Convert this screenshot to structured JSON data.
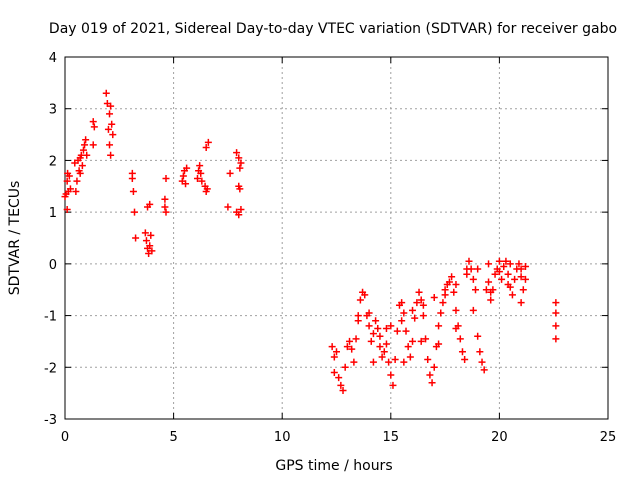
{
  "chart_data": {
    "type": "scatter",
    "title": "Day 019 of 2021, Sidereal Day-to-day VTEC variation (SDTVAR) for receiver gabo",
    "xlabel": "GPS time / hours",
    "ylabel": "SDTVAR / TECUs",
    "xlim": [
      0,
      25
    ],
    "ylim": [
      -3,
      4
    ],
    "xticks": [
      "0",
      "5",
      "10",
      "15",
      "20",
      "25"
    ],
    "yticks": [
      "-3",
      "-2",
      "-1",
      "0",
      "1",
      "2",
      "3",
      "4"
    ],
    "grid": true,
    "marker": "+",
    "color": "#ff0000",
    "series": [
      {
        "name": "SDTVAR",
        "points": [
          [
            0.0,
            1.3
          ],
          [
            0.05,
            1.35
          ],
          [
            0.1,
            1.6
          ],
          [
            0.1,
            1.05
          ],
          [
            0.12,
            1.75
          ],
          [
            0.15,
            1.4
          ],
          [
            0.2,
            1.7
          ],
          [
            0.25,
            1.45
          ],
          [
            0.45,
            1.95
          ],
          [
            0.5,
            1.4
          ],
          [
            0.55,
            1.6
          ],
          [
            0.6,
            2.0
          ],
          [
            0.65,
            1.8
          ],
          [
            0.7,
            2.05
          ],
          [
            0.7,
            1.75
          ],
          [
            0.75,
            2.1
          ],
          [
            0.8,
            1.9
          ],
          [
            0.85,
            2.2
          ],
          [
            0.9,
            2.3
          ],
          [
            0.95,
            2.4
          ],
          [
            1.0,
            2.1
          ],
          [
            1.3,
            2.3
          ],
          [
            1.3,
            2.75
          ],
          [
            1.35,
            2.65
          ],
          [
            1.9,
            3.3
          ],
          [
            1.95,
            3.1
          ],
          [
            2.0,
            2.6
          ],
          [
            2.05,
            2.9
          ],
          [
            2.05,
            2.3
          ],
          [
            2.1,
            3.05
          ],
          [
            2.1,
            2.1
          ],
          [
            2.15,
            2.7
          ],
          [
            2.2,
            2.5
          ],
          [
            3.1,
            1.75
          ],
          [
            3.1,
            1.65
          ],
          [
            3.15,
            1.4
          ],
          [
            3.2,
            1.0
          ],
          [
            3.25,
            0.5
          ],
          [
            3.7,
            0.6
          ],
          [
            3.75,
            0.45
          ],
          [
            3.8,
            0.3
          ],
          [
            3.85,
            0.2
          ],
          [
            3.9,
            0.35
          ],
          [
            3.95,
            0.55
          ],
          [
            4.0,
            0.25
          ],
          [
            3.8,
            1.1
          ],
          [
            3.9,
            1.15
          ],
          [
            4.6,
            1.25
          ],
          [
            4.6,
            1.1
          ],
          [
            4.65,
            1.0
          ],
          [
            4.65,
            1.65
          ],
          [
            5.4,
            1.6
          ],
          [
            5.45,
            1.7
          ],
          [
            5.5,
            1.8
          ],
          [
            5.55,
            1.55
          ],
          [
            5.6,
            1.85
          ],
          [
            6.1,
            1.65
          ],
          [
            6.15,
            1.8
          ],
          [
            6.2,
            1.9
          ],
          [
            6.25,
            1.75
          ],
          [
            6.3,
            1.6
          ],
          [
            6.45,
            1.5
          ],
          [
            6.5,
            1.4
          ],
          [
            6.55,
            1.45
          ],
          [
            6.5,
            2.25
          ],
          [
            6.6,
            2.35
          ],
          [
            7.5,
            1.1
          ],
          [
            7.6,
            1.75
          ],
          [
            7.9,
            2.15
          ],
          [
            8.0,
            2.05
          ],
          [
            8.05,
            1.85
          ],
          [
            8.1,
            1.95
          ],
          [
            8.0,
            1.5
          ],
          [
            8.05,
            1.45
          ],
          [
            7.9,
            1.0
          ],
          [
            8.0,
            0.95
          ],
          [
            8.1,
            1.05
          ],
          [
            12.3,
            -1.6
          ],
          [
            12.4,
            -1.8
          ],
          [
            12.4,
            -2.1
          ],
          [
            12.5,
            -1.7
          ],
          [
            12.6,
            -2.2
          ],
          [
            12.7,
            -2.35
          ],
          [
            12.8,
            -2.45
          ],
          [
            12.9,
            -2.0
          ],
          [
            13.0,
            -1.6
          ],
          [
            13.1,
            -1.5
          ],
          [
            13.2,
            -1.65
          ],
          [
            13.3,
            -1.9
          ],
          [
            13.4,
            -1.45
          ],
          [
            13.5,
            -1.1
          ],
          [
            13.6,
            -0.7
          ],
          [
            13.7,
            -0.55
          ],
          [
            13.8,
            -0.6
          ],
          [
            13.9,
            -1.0
          ],
          [
            14.0,
            -1.2
          ],
          [
            14.1,
            -1.5
          ],
          [
            14.2,
            -1.35
          ],
          [
            14.3,
            -1.1
          ],
          [
            14.4,
            -1.25
          ],
          [
            14.5,
            -1.6
          ],
          [
            14.6,
            -1.8
          ],
          [
            14.7,
            -1.7
          ],
          [
            14.8,
            -1.55
          ],
          [
            14.9,
            -1.9
          ],
          [
            15.0,
            -2.15
          ],
          [
            15.1,
            -2.35
          ],
          [
            15.2,
            -1.85
          ],
          [
            15.3,
            -1.3
          ],
          [
            15.4,
            -0.8
          ],
          [
            15.5,
            -0.75
          ],
          [
            15.6,
            -0.95
          ],
          [
            15.7,
            -1.3
          ],
          [
            15.8,
            -1.6
          ],
          [
            15.9,
            -1.8
          ],
          [
            16.0,
            -1.5
          ],
          [
            16.1,
            -1.05
          ],
          [
            16.2,
            -0.75
          ],
          [
            16.3,
            -0.55
          ],
          [
            16.4,
            -0.7
          ],
          [
            16.5,
            -1.0
          ],
          [
            16.6,
            -1.45
          ],
          [
            16.7,
            -1.85
          ],
          [
            16.8,
            -2.15
          ],
          [
            16.9,
            -2.3
          ],
          [
            17.0,
            -2.0
          ],
          [
            17.1,
            -1.6
          ],
          [
            17.2,
            -1.2
          ],
          [
            17.3,
            -0.95
          ],
          [
            17.4,
            -0.75
          ],
          [
            17.5,
            -0.5
          ],
          [
            17.6,
            -0.4
          ],
          [
            17.7,
            -0.35
          ],
          [
            17.8,
            -0.25
          ],
          [
            17.9,
            -0.55
          ],
          [
            18.0,
            -0.9
          ],
          [
            18.1,
            -1.2
          ],
          [
            18.2,
            -1.45
          ],
          [
            18.3,
            -1.7
          ],
          [
            18.4,
            -1.85
          ],
          [
            18.5,
            -0.1
          ],
          [
            18.6,
            0.05
          ],
          [
            18.7,
            -0.1
          ],
          [
            18.8,
            -0.3
          ],
          [
            18.9,
            -0.5
          ],
          [
            19.0,
            -1.4
          ],
          [
            19.1,
            -1.7
          ],
          [
            19.2,
            -1.9
          ],
          [
            19.3,
            -2.05
          ],
          [
            19.4,
            -0.5
          ],
          [
            19.5,
            -0.35
          ],
          [
            19.6,
            -0.7
          ],
          [
            19.7,
            -0.5
          ],
          [
            19.8,
            -0.2
          ],
          [
            19.9,
            -0.1
          ],
          [
            20.0,
            -0.15
          ],
          [
            20.1,
            -0.3
          ],
          [
            20.2,
            -0.05
          ],
          [
            20.3,
            0.05
          ],
          [
            20.4,
            -0.2
          ],
          [
            20.5,
            -0.45
          ],
          [
            20.6,
            -0.6
          ],
          [
            20.7,
            -0.3
          ],
          [
            20.8,
            -0.1
          ],
          [
            20.9,
            0.0
          ],
          [
            21.0,
            -0.25
          ],
          [
            21.1,
            -0.5
          ],
          [
            21.2,
            -0.3
          ],
          [
            21.2,
            -0.05
          ],
          [
            13.5,
            -1.0
          ],
          [
            14.0,
            -0.95
          ],
          [
            14.5,
            -1.4
          ],
          [
            15.0,
            -1.2
          ],
          [
            15.5,
            -1.1
          ],
          [
            16.0,
            -0.9
          ],
          [
            16.5,
            -0.8
          ],
          [
            17.0,
            -0.65
          ],
          [
            17.5,
            -0.6
          ],
          [
            18.0,
            -0.4
          ],
          [
            18.5,
            -0.2
          ],
          [
            19.0,
            -0.1
          ],
          [
            19.5,
            0.0
          ],
          [
            20.0,
            0.05
          ],
          [
            20.5,
            0.0
          ],
          [
            21.0,
            -0.1
          ],
          [
            14.2,
            -1.9
          ],
          [
            14.8,
            -1.25
          ],
          [
            15.6,
            -1.9
          ],
          [
            16.4,
            -1.5
          ],
          [
            17.2,
            -1.55
          ],
          [
            18.0,
            -1.25
          ],
          [
            18.8,
            -0.9
          ],
          [
            19.6,
            -0.55
          ],
          [
            20.4,
            -0.4
          ],
          [
            21.0,
            -0.75
          ],
          [
            22.6,
            -0.75
          ],
          [
            22.6,
            -0.95
          ],
          [
            22.6,
            -1.2
          ],
          [
            22.6,
            -1.45
          ]
        ]
      }
    ]
  }
}
